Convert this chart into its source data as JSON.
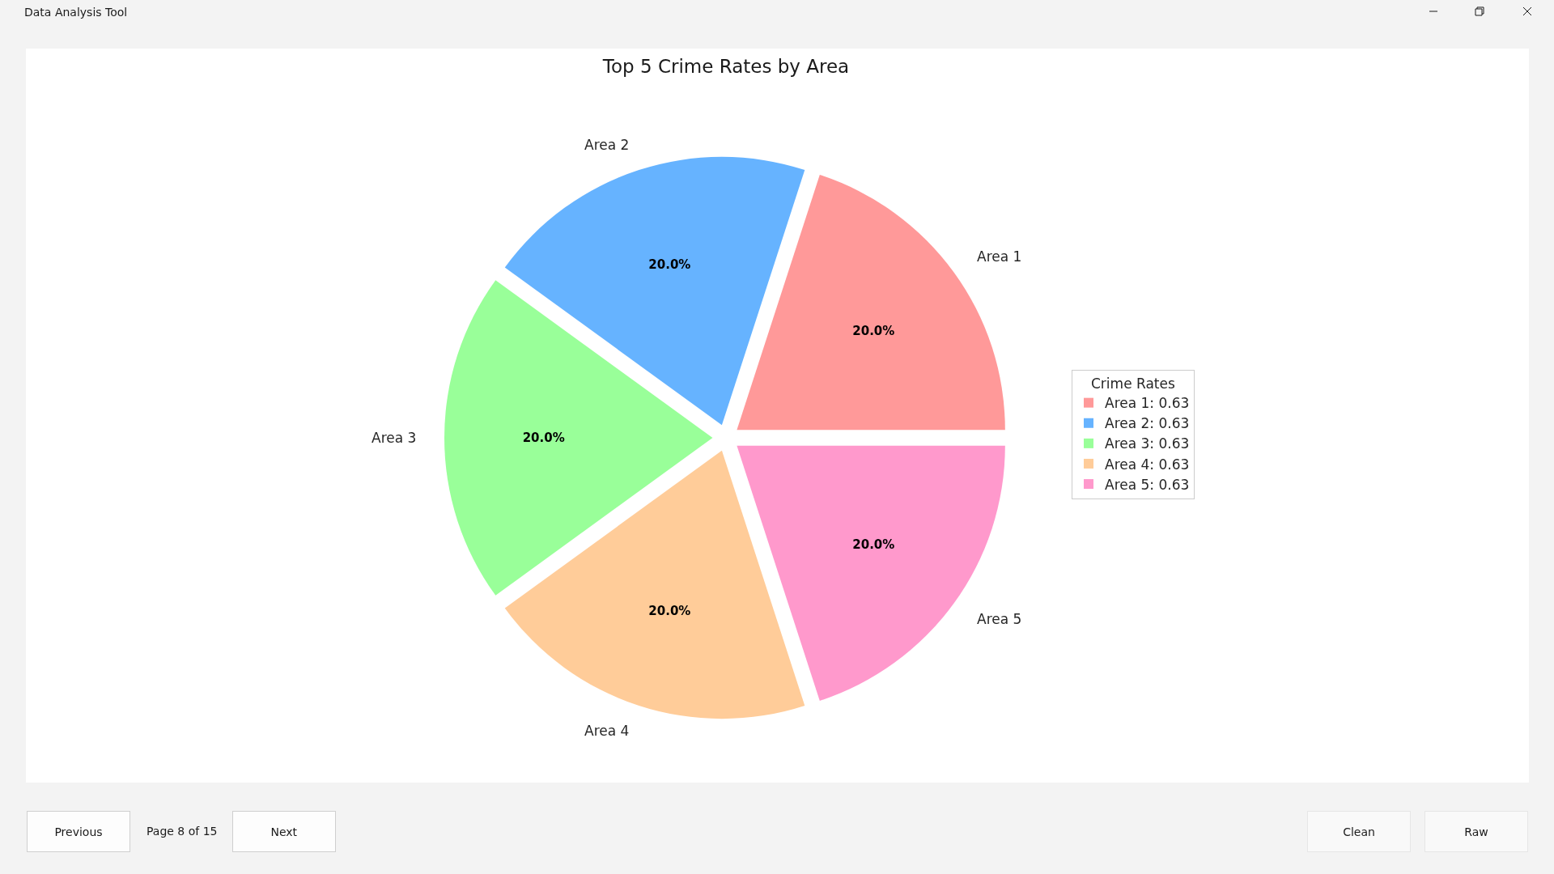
{
  "chart_data": {
    "type": "pie",
    "title": "Top 5 Crime Rates by Area",
    "categories": [
      "Area 1: 0.63",
      "Area 2: 0.63",
      "Area 3: 0.63",
      "Area 4: 0.63",
      "Area 5: 0.63"
    ],
    "values": [
      20,
      20,
      20,
      20,
      20
    ],
    "colors": [
      "#ff9999",
      "#66b3ff",
      "#99ff99",
      "#ffcc99",
      "#ff99cc"
    ],
    "value_labels": [
      "20.0%",
      "20.0%",
      "20.0%",
      "20.0%",
      "20.0%"
    ],
    "legend_title": "Crime Rates",
    "legend": "right",
    "annotations": [
      "Data Analysis Tool",
      "Previous",
      "Page 8 of 15",
      "Next",
      "Clean",
      "Raw",
      "Area 1",
      "Area 2",
      "Area 3",
      "Area 4",
      "Area 5"
    ]
  }
}
